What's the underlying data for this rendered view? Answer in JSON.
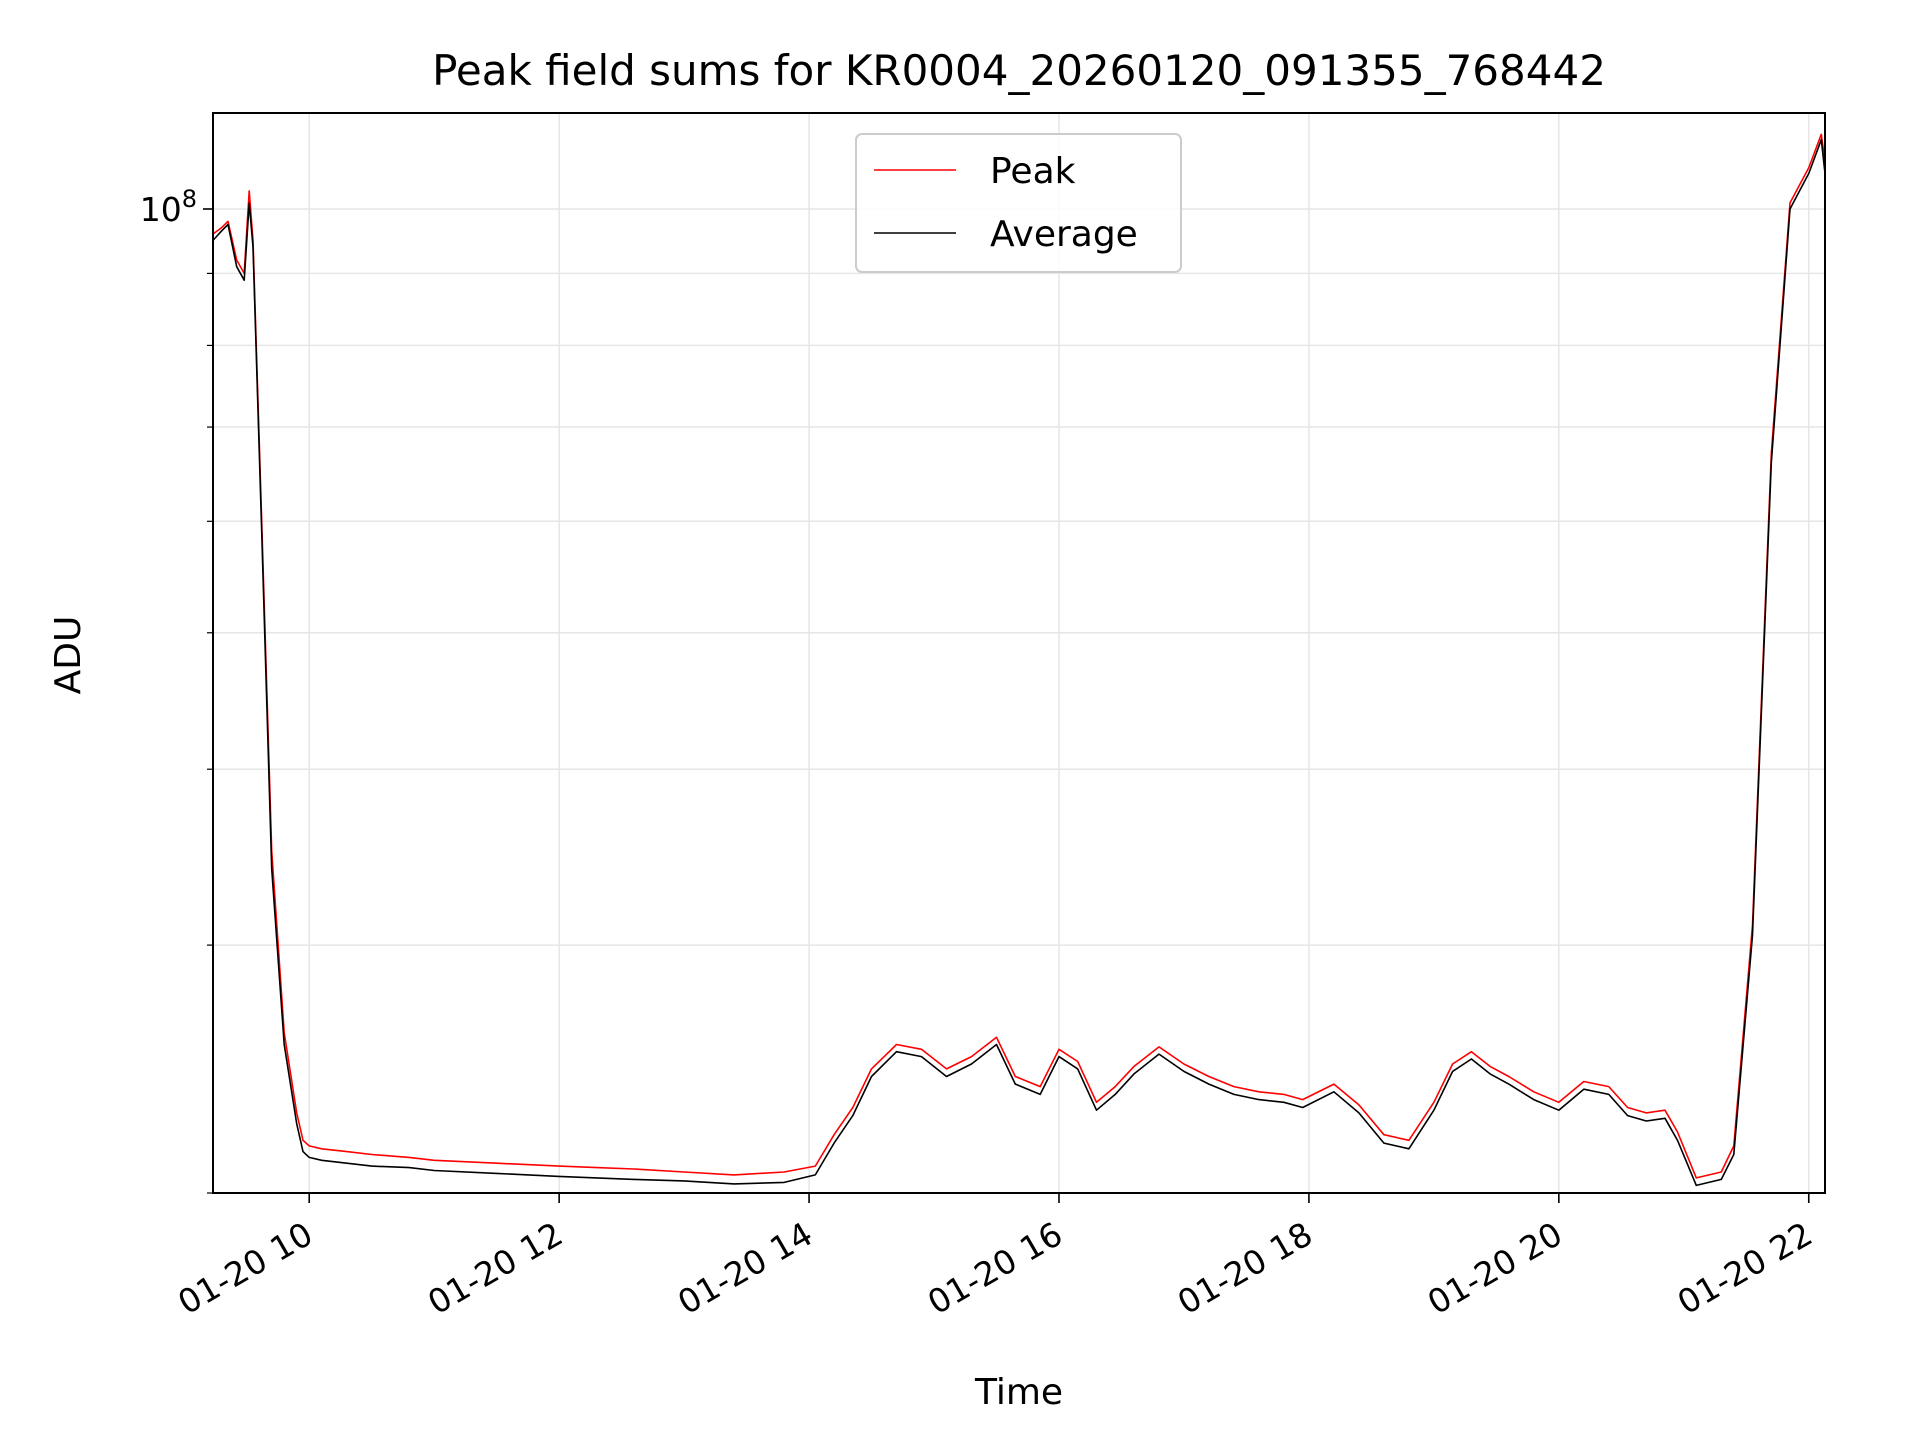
{
  "chart_data": {
    "type": "line",
    "title": "Peak field sums for KR0004_20260120_091355_768442",
    "xlabel": "Time",
    "ylabel": "ADU",
    "x_units": "hours on 2026-01-20 (decimal)",
    "xlim": [
      9.23,
      22.13
    ],
    "ylim": [
      20000000,
      117000000
    ],
    "y_scale": "log",
    "grid": true,
    "legend_position": "top-center",
    "x_ticks": [
      {
        "value": 10,
        "label": "01-20 10"
      },
      {
        "value": 12,
        "label": "01-20 12"
      },
      {
        "value": 14,
        "label": "01-20 14"
      },
      {
        "value": 16,
        "label": "01-20 16"
      },
      {
        "value": 18,
        "label": "01-20 18"
      },
      {
        "value": 20,
        "label": "01-20 20"
      },
      {
        "value": 22,
        "label": "01-20 22"
      }
    ],
    "y_major_ticks": [
      {
        "value": 100000000,
        "base": "10",
        "exp": "8"
      }
    ],
    "y_minor_ticks": [
      20000000,
      30000000,
      40000000,
      50000000,
      60000000,
      70000000,
      80000000,
      90000000
    ],
    "series": [
      {
        "name": "Peak",
        "color": "#ff0000",
        "x": [
          9.23,
          9.3,
          9.35,
          9.42,
          9.48,
          9.52,
          9.55,
          9.62,
          9.7,
          9.8,
          9.9,
          9.95,
          10.0,
          10.1,
          10.3,
          10.5,
          10.8,
          11.0,
          11.5,
          12.0,
          12.3,
          12.6,
          13.0,
          13.4,
          13.8,
          14.05,
          14.2,
          14.35,
          14.5,
          14.7,
          14.9,
          15.1,
          15.3,
          15.5,
          15.65,
          15.85,
          16.0,
          16.15,
          16.3,
          16.45,
          16.6,
          16.8,
          17.0,
          17.2,
          17.4,
          17.6,
          17.8,
          17.95,
          18.2,
          18.4,
          18.6,
          18.8,
          19.0,
          19.15,
          19.3,
          19.45,
          19.6,
          19.8,
          20.0,
          20.2,
          20.4,
          20.55,
          20.7,
          20.85,
          20.95,
          21.1,
          21.3,
          21.4,
          21.55,
          21.7,
          21.85,
          22.0,
          22.1,
          22.13
        ],
        "values": [
          96000000,
          97000000,
          98000000,
          92000000,
          90000000,
          103000000,
          95000000,
          60000000,
          35000000,
          26000000,
          22800000,
          21800000,
          21600000,
          21500000,
          21400000,
          21300000,
          21200000,
          21100000,
          21000000,
          20900000,
          20850000,
          20800000,
          20700000,
          20600000,
          20700000,
          20900000,
          22000000,
          23000000,
          24500000,
          25500000,
          25300000,
          24500000,
          25000000,
          25800000,
          24200000,
          23800000,
          25300000,
          24800000,
          23200000,
          23800000,
          24600000,
          25400000,
          24700000,
          24200000,
          23800000,
          23600000,
          23500000,
          23300000,
          23900000,
          23100000,
          22000000,
          21800000,
          23200000,
          24700000,
          25200000,
          24600000,
          24200000,
          23600000,
          23200000,
          24000000,
          23800000,
          23000000,
          22800000,
          22900000,
          22100000,
          20500000,
          20700000,
          21600000,
          31000000,
          67000000,
          101000000,
          107000000,
          113000000,
          108000000
        ]
      },
      {
        "name": "Average",
        "color": "#000000",
        "x": [
          9.23,
          9.3,
          9.35,
          9.42,
          9.48,
          9.52,
          9.55,
          9.62,
          9.7,
          9.8,
          9.9,
          9.95,
          10.0,
          10.1,
          10.3,
          10.5,
          10.8,
          11.0,
          11.5,
          12.0,
          12.3,
          12.6,
          13.0,
          13.4,
          13.8,
          14.05,
          14.2,
          14.35,
          14.5,
          14.7,
          14.9,
          15.1,
          15.3,
          15.5,
          15.65,
          15.85,
          16.0,
          16.15,
          16.3,
          16.45,
          16.6,
          16.8,
          17.0,
          17.2,
          17.4,
          17.6,
          17.8,
          17.95,
          18.2,
          18.4,
          18.6,
          18.8,
          19.0,
          19.15,
          19.3,
          19.45,
          19.6,
          19.8,
          20.0,
          20.2,
          20.4,
          20.55,
          20.7,
          20.85,
          20.95,
          21.1,
          21.3,
          21.4,
          21.55,
          21.7,
          21.85,
          22.0,
          22.1,
          22.13
        ],
        "values": [
          95000000,
          96500000,
          97500000,
          91000000,
          89000000,
          101000000,
          94000000,
          59000000,
          34000000,
          25500000,
          22400000,
          21400000,
          21200000,
          21100000,
          21000000,
          20900000,
          20850000,
          20750000,
          20650000,
          20550000,
          20500000,
          20450000,
          20400000,
          20300000,
          20350000,
          20600000,
          21700000,
          22700000,
          24200000,
          25200000,
          25000000,
          24200000,
          24700000,
          25500000,
          23900000,
          23500000,
          25000000,
          24500000,
          22900000,
          23500000,
          24300000,
          25100000,
          24400000,
          23900000,
          23500000,
          23300000,
          23200000,
          23000000,
          23600000,
          22800000,
          21700000,
          21500000,
          22900000,
          24400000,
          24900000,
          24300000,
          23900000,
          23300000,
          22900000,
          23700000,
          23500000,
          22700000,
          22500000,
          22600000,
          21800000,
          20250000,
          20450000,
          21300000,
          30500000,
          66000000,
          100000000,
          106000000,
          112000000,
          106000000
        ]
      }
    ]
  }
}
